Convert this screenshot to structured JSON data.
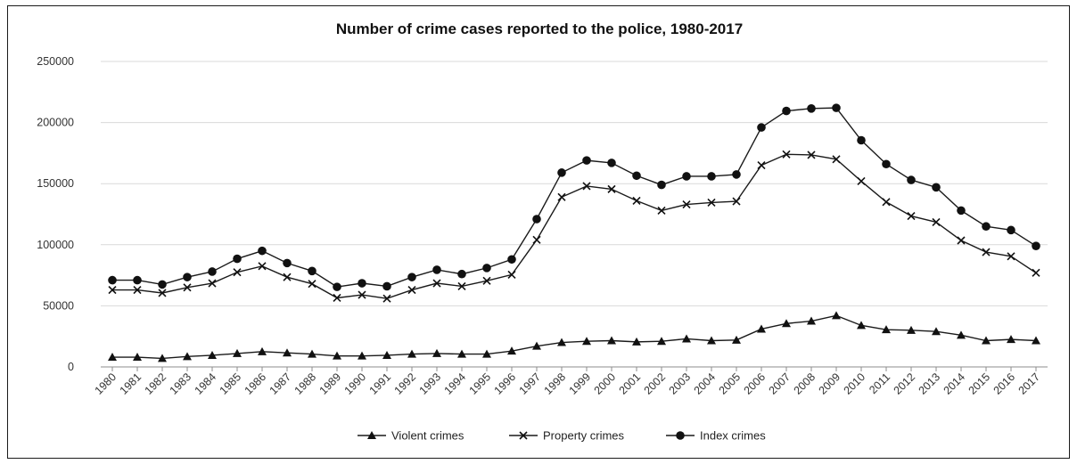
{
  "chart_data": {
    "type": "line",
    "title": "Number of crime cases reported to the police, 1980-2017",
    "xlabel": "",
    "ylabel": "",
    "ylim": [
      0,
      250000
    ],
    "yticks": [
      "0",
      "50000",
      "100000",
      "150000",
      "200000",
      "250000"
    ],
    "grid": "horizontal",
    "legend_position": "bottom",
    "categories": [
      "1980",
      "1981",
      "1982",
      "1983",
      "1984",
      "1985",
      "1986",
      "1987",
      "1988",
      "1989",
      "1990",
      "1991",
      "1992",
      "1993",
      "1994",
      "1995",
      "1996",
      "1997",
      "1998",
      "1999",
      "2000",
      "2001",
      "2002",
      "2003",
      "2004",
      "2005",
      "2006",
      "2007",
      "2008",
      "2009",
      "2010",
      "2011",
      "2012",
      "2013",
      "2014",
      "2015",
      "2016",
      "2017"
    ],
    "series": [
      {
        "name": "Violent crimes",
        "marker": "triangle",
        "values": [
          8000,
          8000,
          7000,
          8500,
          9500,
          11000,
          12500,
          11500,
          10500,
          9000,
          9000,
          9500,
          10500,
          11000,
          10500,
          10500,
          13000,
          17000,
          20000,
          21000,
          21500,
          20500,
          21000,
          23000,
          21500,
          22000,
          31000,
          35500,
          37500,
          42000,
          34000,
          30500,
          30000,
          29000,
          26000,
          21500,
          22500,
          21500
        ]
      },
      {
        "name": "Property crimes",
        "marker": "cross",
        "values": [
          63000,
          63000,
          60500,
          65000,
          68500,
          77500,
          82500,
          73500,
          68000,
          56500,
          59000,
          56000,
          63000,
          68500,
          66000,
          70500,
          75500,
          104000,
          139000,
          148000,
          145500,
          136000,
          128000,
          133000,
          134500,
          135500,
          165000,
          174000,
          173500,
          170000,
          152000,
          135000,
          123500,
          118500,
          103500,
          94000,
          90500,
          77000
        ]
      },
      {
        "name": "Index crimes",
        "marker": "circle",
        "values": [
          71000,
          71000,
          67500,
          73500,
          78000,
          88500,
          95000,
          85000,
          78500,
          65500,
          68500,
          66000,
          73500,
          79500,
          76000,
          81000,
          88000,
          121000,
          159000,
          169000,
          167000,
          156500,
          149000,
          156000,
          156000,
          157500,
          196000,
          209500,
          211500,
          212000,
          185500,
          166000,
          153000,
          147000,
          128000,
          115000,
          112000,
          99000
        ]
      }
    ]
  }
}
